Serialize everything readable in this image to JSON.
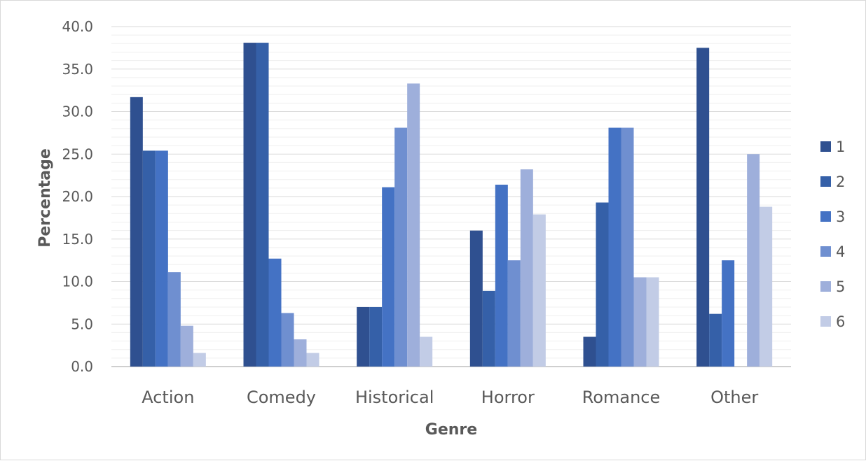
{
  "chart_data": {
    "type": "bar",
    "categories": [
      "Action",
      "Comedy",
      "Historical",
      "Horror",
      "Romance",
      "Other"
    ],
    "series": [
      {
        "name": "1",
        "color": "#2F5090",
        "values": [
          31.7,
          38.1,
          7.0,
          16.0,
          3.5,
          37.5
        ]
      },
      {
        "name": "2",
        "color": "#3560A8",
        "values": [
          25.4,
          38.1,
          7.0,
          8.9,
          19.3,
          6.2
        ]
      },
      {
        "name": "3",
        "color": "#4472C4",
        "values": [
          25.4,
          12.7,
          21.1,
          21.4,
          28.1,
          12.5
        ]
      },
      {
        "name": "4",
        "color": "#6F8FD0",
        "values": [
          11.1,
          6.3,
          28.1,
          12.5,
          28.1,
          0.0
        ]
      },
      {
        "name": "5",
        "color": "#9EAFDB",
        "values": [
          4.8,
          3.2,
          33.3,
          23.2,
          10.5,
          25.0
        ]
      },
      {
        "name": "6",
        "color": "#C2CCE6",
        "values": [
          1.6,
          1.6,
          3.5,
          17.9,
          10.5,
          18.8
        ]
      }
    ],
    "xlabel": "Genre",
    "ylabel": "Percentage",
    "ylim": [
      0,
      40
    ],
    "yticks": [
      "0.0",
      "5.0",
      "10.0",
      "15.0",
      "20.0",
      "25.0",
      "30.0",
      "35.0",
      "40.0"
    ],
    "grid": true,
    "legend": "right"
  },
  "colors": {
    "gridline": "#d9d9d9",
    "axis_line": "#bfbfbf",
    "text": "#595959"
  }
}
